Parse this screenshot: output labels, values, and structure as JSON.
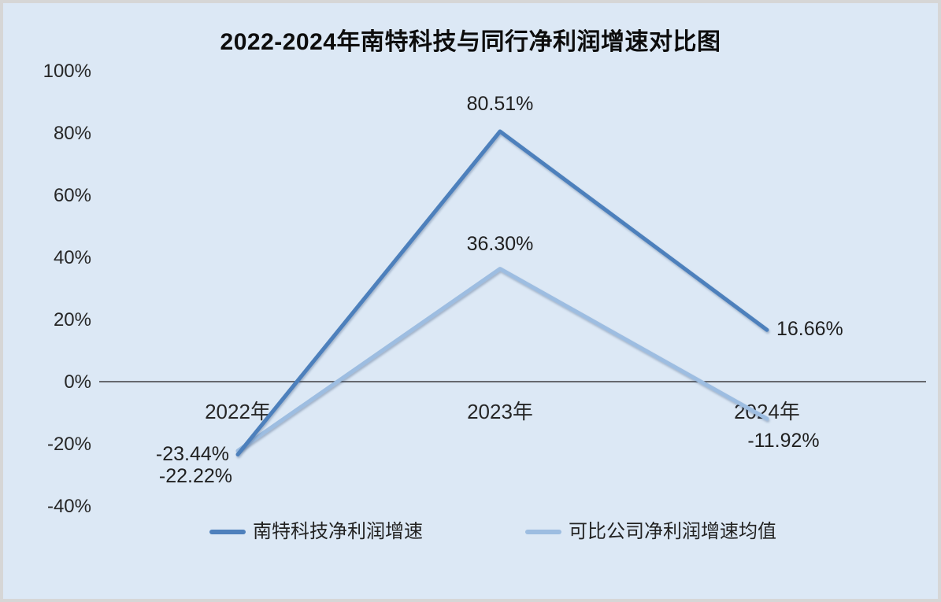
{
  "frame": {
    "background": "#dce8f5",
    "border_color": "#d6d6d6"
  },
  "chart_data": {
    "type": "line",
    "title": "2022-2024年南特科技与同行净利润增速对比图",
    "categories": [
      "2022年",
      "2023年",
      "2024年"
    ],
    "series": [
      {
        "name": "南特科技净利润增速",
        "color": "#4e80bc",
        "values": [
          -23.44,
          80.51,
          16.66
        ],
        "labels": [
          "-23.44%",
          "80.51%",
          "16.66%"
        ]
      },
      {
        "name": "可比公司净利润增速均值",
        "color": "#9dbde1",
        "values": [
          -22.22,
          36.3,
          -11.92
        ],
        "labels": [
          "-22.22%",
          "36.30%",
          "-11.92%"
        ]
      }
    ],
    "y_axis": {
      "unit": "%",
      "min": -40,
      "max": 100,
      "tick_values": [
        100,
        80,
        60,
        40,
        20,
        0,
        -20,
        -40
      ],
      "ticks": [
        "100%",
        "80%",
        "60%",
        "40%",
        "20%",
        "0%",
        "-20%",
        "-40%"
      ]
    },
    "grid": false,
    "legend_position": "bottom",
    "axis_color": "#55565a"
  }
}
